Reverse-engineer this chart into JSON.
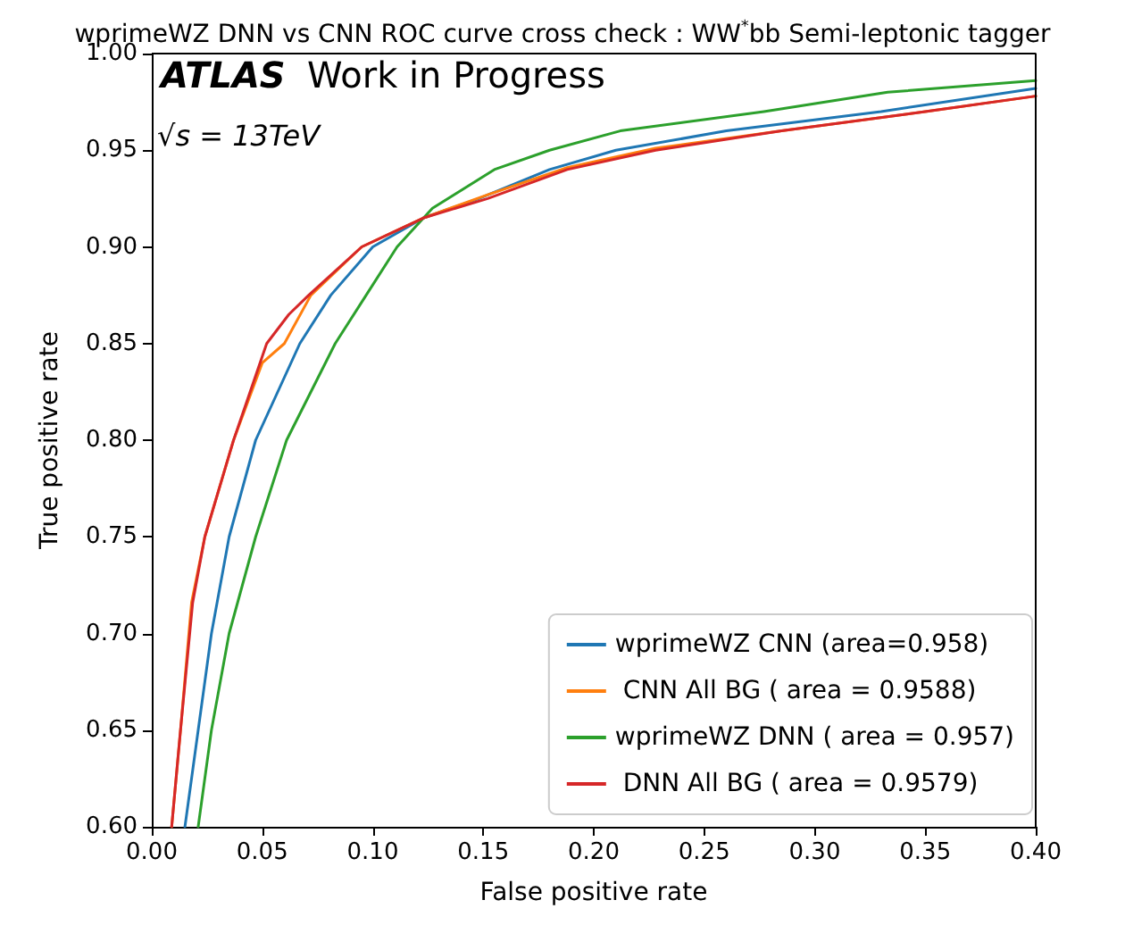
{
  "chart_data": {
    "type": "line",
    "title": "wprimeWZ DNN vs CNN ROC curve cross check : WW$^{*}$bb Semi-leptonic tagger",
    "xlabel": "False positive rate",
    "ylabel": "True positive rate",
    "annotations": [
      "ATLAS",
      "Work in Progress",
      "√s = 13TeV"
    ],
    "xlim": [
      0,
      0.4
    ],
    "ylim": [
      0.6,
      1.0
    ],
    "xticks": [
      {
        "value": 0,
        "label": "0.00"
      },
      {
        "value": 0.05,
        "label": "0.05"
      },
      {
        "value": 0.1,
        "label": "0.10"
      },
      {
        "value": 0.15,
        "label": "0.15"
      },
      {
        "value": 0.2,
        "label": "0.20"
      },
      {
        "value": 0.25,
        "label": "0.25"
      },
      {
        "value": 0.3,
        "label": "0.30"
      },
      {
        "value": 0.35,
        "label": "0.35"
      },
      {
        "value": 0.4,
        "label": "0.40"
      }
    ],
    "yticks": [
      {
        "value": 0.6,
        "label": "0.60"
      },
      {
        "value": 0.65,
        "label": "0.65"
      },
      {
        "value": 0.7,
        "label": "0.70"
      },
      {
        "value": 0.75,
        "label": "0.75"
      },
      {
        "value": 0.8,
        "label": "0.80"
      },
      {
        "value": 0.85,
        "label": "0.85"
      },
      {
        "value": 0.9,
        "label": "0.90"
      },
      {
        "value": 0.95,
        "label": "0.95"
      },
      {
        "value": 1.0,
        "label": "1.00"
      }
    ],
    "grid": false,
    "legend": "bottom right",
    "marker": "none",
    "line_style": "solid",
    "series": [
      {
        "name": "wprimeWZ CNN (area=0.958)",
        "color": "#1f77b4",
        "x": [
          0.015,
          0.021,
          0.027,
          0.035,
          0.047,
          0.067,
          0.081,
          0.1,
          0.123,
          0.148,
          0.18,
          0.21,
          0.26,
          0.33,
          0.4
        ],
        "values": [
          0.6,
          0.65,
          0.7,
          0.75,
          0.8,
          0.85,
          0.875,
          0.9,
          0.915,
          0.925,
          0.94,
          0.95,
          0.96,
          0.97,
          0.982
        ]
      },
      {
        "name": " CNN All BG ( area = 0.9588)",
        "color": "#ff7f0e",
        "x": [
          0.009,
          0.013,
          0.018,
          0.024,
          0.037,
          0.05,
          0.06,
          0.072,
          0.095,
          0.123,
          0.152,
          0.188,
          0.228,
          0.285,
          0.35,
          0.4
        ],
        "values": [
          0.6,
          0.65,
          0.716,
          0.75,
          0.8,
          0.84,
          0.85,
          0.875,
          0.9,
          0.915,
          0.927,
          0.941,
          0.951,
          0.96,
          0.97,
          0.978
        ]
      },
      {
        "name": "wprimeWZ DNN ( area = 0.957)",
        "color": "#2ca02c",
        "x": [
          0.021,
          0.027,
          0.035,
          0.047,
          0.061,
          0.083,
          0.097,
          0.111,
          0.127,
          0.155,
          0.18,
          0.212,
          0.277,
          0.333,
          0.4
        ],
        "values": [
          0.6,
          0.65,
          0.7,
          0.75,
          0.8,
          0.85,
          0.875,
          0.9,
          0.92,
          0.94,
          0.95,
          0.96,
          0.97,
          0.98,
          0.986
        ]
      },
      {
        "name": " DNN All BG ( area = 0.9579)",
        "color": "#d62728",
        "x": [
          0.009,
          0.013,
          0.0185,
          0.024,
          0.037,
          0.052,
          0.062,
          0.071,
          0.095,
          0.123,
          0.152,
          0.188,
          0.228,
          0.285,
          0.35,
          0.4
        ],
        "values": [
          0.6,
          0.65,
          0.716,
          0.75,
          0.8,
          0.85,
          0.865,
          0.875,
          0.9,
          0.915,
          0.925,
          0.94,
          0.95,
          0.96,
          0.97,
          0.978
        ]
      }
    ]
  }
}
